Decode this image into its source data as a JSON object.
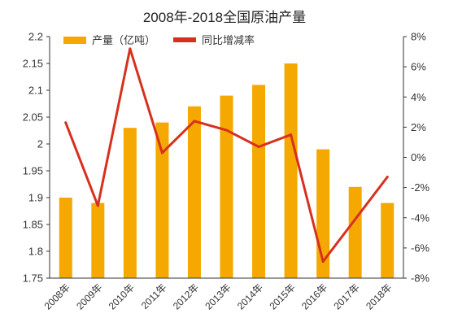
{
  "chart_data": {
    "type": "bar",
    "title": "2008年-2018全国原油产量",
    "categories": [
      "2008年",
      "2009年",
      "2010年",
      "2011年",
      "2012年",
      "2013年",
      "2014年",
      "2015年",
      "2016年",
      "2017年",
      "2018年"
    ],
    "series": [
      {
        "name": "产量（亿吨）",
        "type": "bar",
        "axis": "left",
        "color": "#f5a800",
        "values": [
          1.9,
          1.89,
          2.03,
          2.04,
          2.07,
          2.09,
          2.11,
          2.15,
          1.99,
          1.92,
          1.89
        ]
      },
      {
        "name": "同比增减率",
        "type": "line",
        "axis": "right",
        "color": "#d8301e",
        "values": [
          2.3,
          -3.2,
          7.2,
          0.3,
          2.4,
          1.8,
          0.7,
          1.5,
          -6.9,
          -4.1,
          -1.3
        ]
      }
    ],
    "y_left": {
      "min": 1.75,
      "max": 2.2,
      "ticks": [
        "1.75",
        "1.8",
        "1.85",
        "1.9",
        "1.95",
        "2",
        "2.05",
        "2.1",
        "2.15",
        "2.2"
      ]
    },
    "y_right": {
      "min": -8,
      "max": 8,
      "ticks": [
        "-8%",
        "-6%",
        "-4%",
        "-2%",
        "0%",
        "2%",
        "4%",
        "6%",
        "8%"
      ]
    },
    "grid": false,
    "legend": "top-left"
  }
}
